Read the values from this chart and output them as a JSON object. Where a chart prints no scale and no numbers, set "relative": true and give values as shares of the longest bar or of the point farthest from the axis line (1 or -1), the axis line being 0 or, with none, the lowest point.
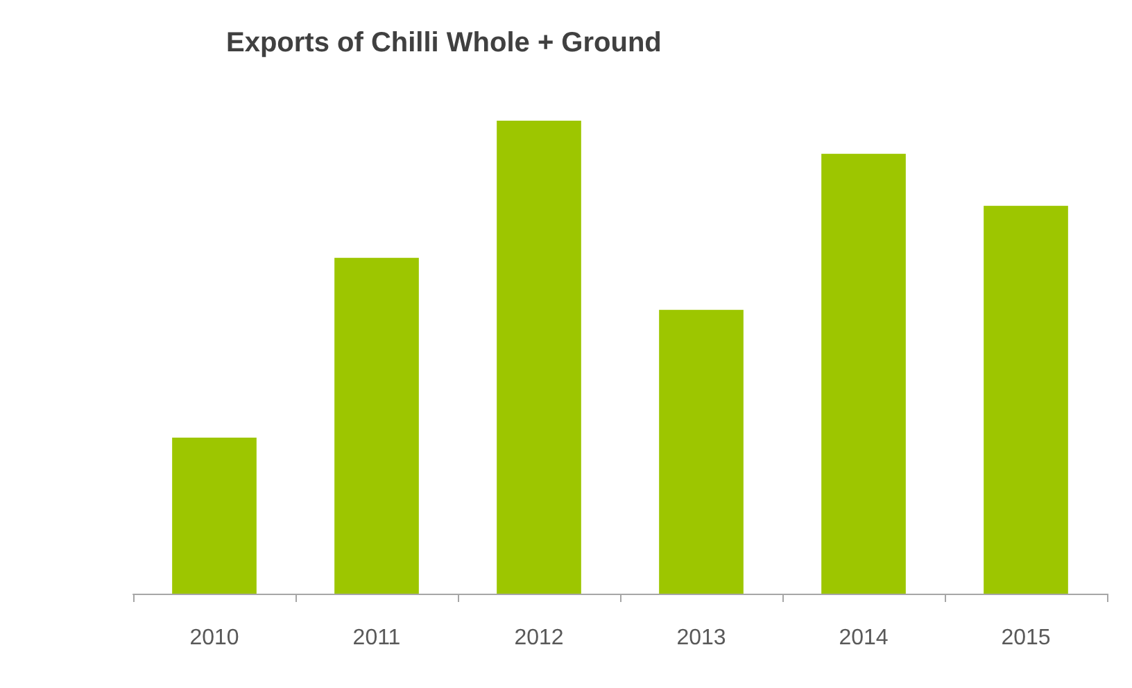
{
  "chart_data": {
    "type": "bar",
    "title": "Exports of Chilli Whole + Ground",
    "categories": [
      "2010",
      "2011",
      "2012",
      "2013",
      "2014",
      "2015"
    ],
    "values": [
      0.33,
      0.71,
      1,
      0.6,
      0.93,
      0.82
    ],
    "color": "#9dc600",
    "relative": true
  }
}
